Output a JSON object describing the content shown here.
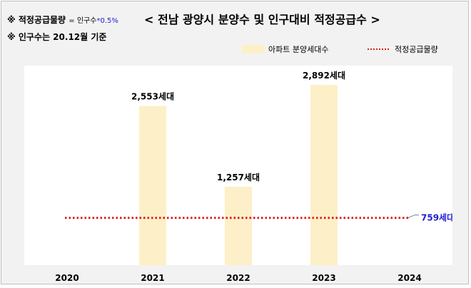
{
  "notes": {
    "formula_label": "※ 적정공급물량",
    "formula_eq": "= 인구수",
    "formula_mult": "*0.5%",
    "basis": "※ 인구수는 20.12월 기준"
  },
  "chart_data": {
    "type": "bar",
    "title": "< 전남 광양시 분양수 및 인구대비 적정공급수 >",
    "categories": [
      "2020",
      "2021",
      "2022",
      "2023",
      "2024"
    ],
    "series": [
      {
        "name": "아파트 분양세대수",
        "values": [
          0,
          2553,
          1257,
          2892,
          0
        ],
        "data_labels": [
          "",
          "2,553세대",
          "1,257세대",
          "2,892세대",
          ""
        ]
      }
    ],
    "reference_line": {
      "name": "적정공급물량",
      "value": 759,
      "label": "759세대"
    },
    "ylim": [
      0,
      3200
    ],
    "legend": "top-right",
    "grid": false,
    "colors": {
      "bar": "#fdf0c8",
      "line": "#e02020",
      "line_label": "#1f1fcf"
    }
  }
}
